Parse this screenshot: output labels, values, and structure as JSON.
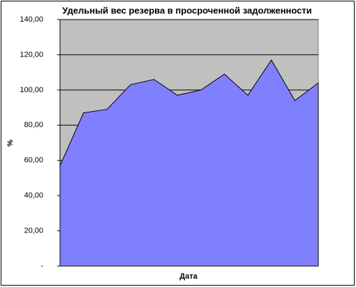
{
  "chart_data": {
    "type": "area",
    "title": "Удельный вес резерва в просроченной задолженности",
    "x_label": "Дата",
    "y_label": "%",
    "categories": [
      null,
      null,
      null,
      null,
      null,
      null,
      null,
      null,
      null,
      null,
      null,
      null
    ],
    "values": [
      57,
      87,
      89,
      103,
      106,
      97,
      100,
      109,
      97,
      117,
      94,
      104
    ],
    "color": "#8080ff",
    "background": "#c0c0c0",
    "grid": true,
    "ylim": [
      0,
      140
    ],
    "yticks": [
      {
        "value": 0,
        "label": "-"
      },
      {
        "value": 20,
        "label": "20,00"
      },
      {
        "value": 40,
        "label": "40,00"
      },
      {
        "value": 60,
        "label": "60,00"
      },
      {
        "value": 80,
        "label": "80,00"
      },
      {
        "value": 100,
        "label": "100,00"
      },
      {
        "value": 120,
        "label": "120,00"
      },
      {
        "value": 140,
        "label": "140,00"
      }
    ]
  }
}
